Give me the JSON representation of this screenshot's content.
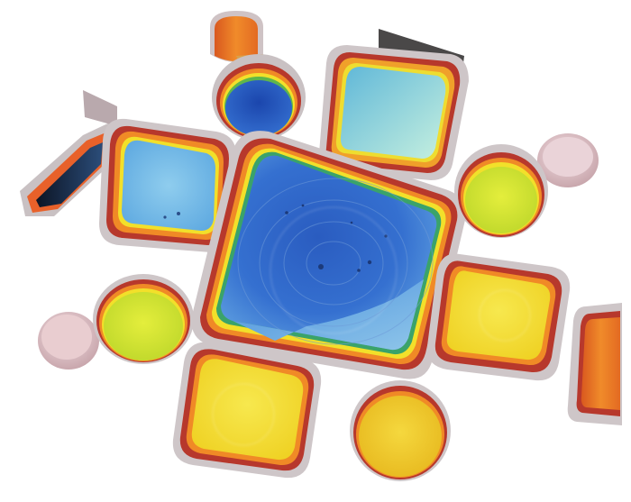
{
  "scene": {
    "kind": "3d-surface-topography-render",
    "background": "#ffffff",
    "colormap": [
      "#1f3fa0",
      "#2e6fd0",
      "#6fb6e6",
      "#9fe3e0",
      "#d8ef45",
      "#f2e02a",
      "#f5a623",
      "#e8612a",
      "#c0392b"
    ],
    "rim_colors": [
      "#b8aeb0",
      "#c0392b",
      "#e8612a",
      "#f5a623",
      "#f2e02a",
      "#86c540",
      "#2e9f6a"
    ],
    "pits": [
      {
        "id": "central-square",
        "shape": "square",
        "floor_colors": [
          "#2f63c6",
          "#3b7bd6",
          "#6aa8e0"
        ]
      },
      {
        "id": "upper-left-square",
        "shape": "square",
        "floor_colors": [
          "#6db0e3",
          "#9fd3ef"
        ]
      },
      {
        "id": "top-right-square",
        "shape": "square",
        "floor_colors": [
          "#74c3da",
          "#b7ece0"
        ]
      },
      {
        "id": "top-circle",
        "shape": "circle",
        "floor_colors": [
          "#1d4fb8",
          "#3a6fd0"
        ]
      },
      {
        "id": "right-circle",
        "shape": "circle",
        "floor_colors": [
          "#c9e02e",
          "#e3ec3a"
        ]
      },
      {
        "id": "left-circle",
        "shape": "circle",
        "floor_colors": [
          "#d8e83a",
          "#f0ee40"
        ]
      },
      {
        "id": "right-square",
        "shape": "square",
        "floor_colors": [
          "#f2dd28",
          "#f7e64a"
        ]
      },
      {
        "id": "bottom-left-square",
        "shape": "square",
        "floor_colors": [
          "#f0d720",
          "#f7e444"
        ]
      },
      {
        "id": "bottom-circle",
        "shape": "circle",
        "floor_colors": [
          "#eec21e",
          "#f5d83a"
        ]
      },
      {
        "id": "right-edge-partial",
        "shape": "partial",
        "floor_colors": [
          "#d88a20",
          "#f0b030"
        ]
      },
      {
        "id": "left-edge-partial",
        "shape": "partial",
        "floor_colors": [
          "#0d1a30",
          "#2a5a8a"
        ]
      }
    ],
    "mounds": [
      {
        "id": "top-right-mound",
        "color": "#e9c9cf"
      },
      {
        "id": "left-mound",
        "color": "#e6c2c4"
      }
    ]
  }
}
